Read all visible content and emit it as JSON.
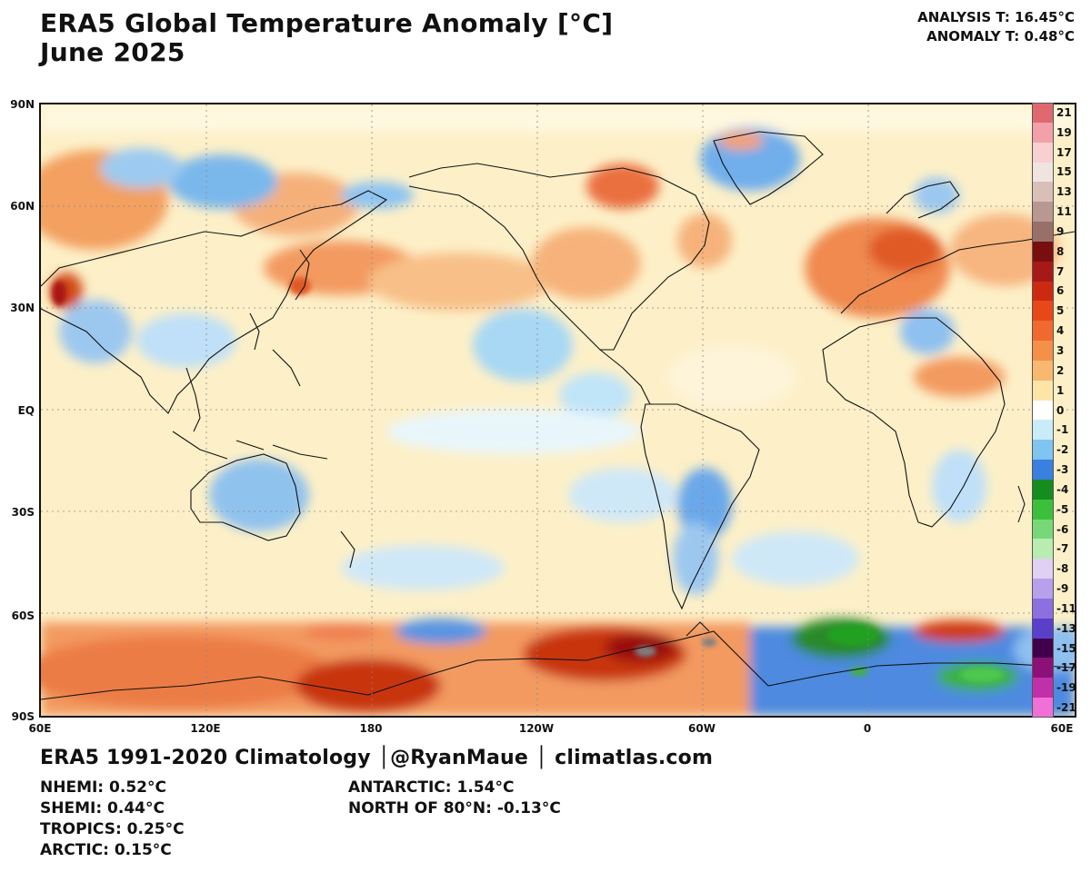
{
  "header": {
    "title_line1": "ERA5 Global Temperature Anomaly [°C]",
    "title_line2": "June 2025",
    "analysis_t": "ANALYSIS T: 16.45°C",
    "anomaly_t": "ANOMALY T: 0.48°C"
  },
  "map": {
    "lat_labels": [
      "90N",
      "60N",
      "30N",
      "EQ",
      "30S",
      "60S",
      "90S"
    ],
    "lon_labels": [
      "60E",
      "120E",
      "180",
      "120W",
      "60W",
      "0",
      "60E"
    ]
  },
  "colorbar": {
    "labels": [
      "21",
      "19",
      "17",
      "15",
      "13",
      "11",
      "9",
      "8",
      "7",
      "6",
      "5",
      "4",
      "3",
      "2",
      "1",
      "0",
      "-1",
      "-2",
      "-3",
      "-4",
      "-5",
      "-6",
      "-7",
      "-8",
      "-9",
      "-11",
      "-13",
      "-15",
      "-17",
      "-19",
      "-21"
    ],
    "colors": [
      "#e06870",
      "#f4a0a8",
      "#f8d0d0",
      "#f0e4e0",
      "#d8c0b8",
      "#b89890",
      "#987068",
      "#780e0e",
      "#a81818",
      "#cc2a10",
      "#e84818",
      "#f06a30",
      "#f59048",
      "#f8b870",
      "#fde5a8",
      "#ffffff",
      "#c8ecf8",
      "#80c4f0",
      "#3a80e0",
      "#168c20",
      "#3cc03c",
      "#78d878",
      "#b8ecb0",
      "#e0d0f4",
      "#b8a0ec",
      "#8c70e0",
      "#5a40c8",
      "#40004c",
      "#8c1078",
      "#c030a8",
      "#f070d8"
    ]
  },
  "footer": {
    "title": "ERA5 1991-2020 Climatology │@RyanMaue │ climatlas.com",
    "stats_left": [
      "NHEMI: 0.52°C",
      "SHEMI: 0.44°C",
      "TROPICS: 0.25°C",
      "ARCTIC: 0.15°C"
    ],
    "stats_right": [
      "ANTARCTIC: 1.54°C",
      "NORTH OF 80°N: -0.13°C"
    ]
  }
}
